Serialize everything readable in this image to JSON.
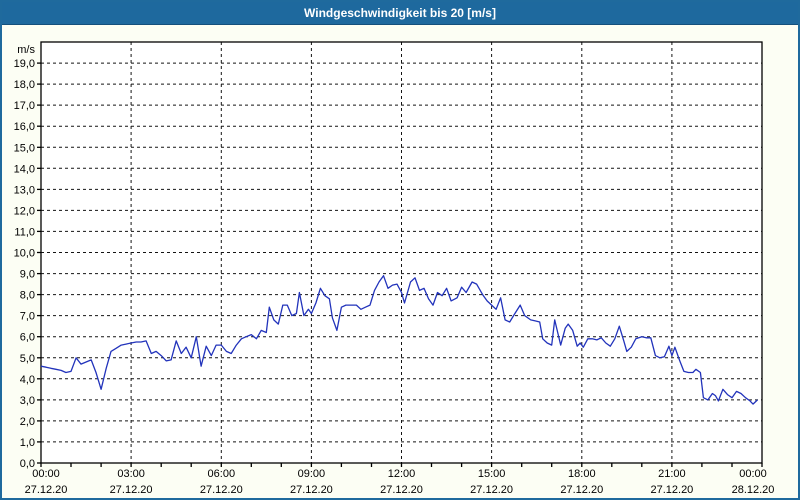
{
  "window": {
    "title": "Windgeschwindigkeit bis 20 [m/s]"
  },
  "colors": {
    "titlebar_bg": "#1e699e",
    "window_border": "#1f6a9d",
    "page_bg": "#fcfef4",
    "plot_bg": "#ffffff",
    "grid": "#141414",
    "line": "#2233bb"
  },
  "chart_data": {
    "type": "line",
    "title": "Windgeschwindigkeit bis 20 [m/s]",
    "ylabel_unit": "m/s",
    "ylim": [
      0,
      20
    ],
    "xlim_hours": [
      0,
      24
    ],
    "grid": {
      "h_step": 1,
      "v_step_hours": 3,
      "style": "dashed",
      "minor_x_tick_hours": 1
    },
    "legend_position": "none",
    "line_color": "#2233bb",
    "y_tick_labels": [
      "0,0",
      "1,0",
      "2,0",
      "3,0",
      "4,0",
      "5,0",
      "6,0",
      "7,0",
      "8,0",
      "9,0",
      "10,0",
      "11,0",
      "12,0",
      "13,0",
      "14,0",
      "15,0",
      "16,0",
      "17,0",
      "18,0",
      "19,0"
    ],
    "x_ticks": [
      {
        "hour": 0,
        "time": "00:00",
        "date": "27.12.20"
      },
      {
        "hour": 3,
        "time": "03:00",
        "date": "27.12.20"
      },
      {
        "hour": 6,
        "time": "06:00",
        "date": "27.12.20"
      },
      {
        "hour": 9,
        "time": "09:00",
        "date": "27.12.20"
      },
      {
        "hour": 12,
        "time": "12:00",
        "date": "27.12.20"
      },
      {
        "hour": 15,
        "time": "15:00",
        "date": "27.12.20"
      },
      {
        "hour": 18,
        "time": "18:00",
        "date": "27.12.20"
      },
      {
        "hour": 21,
        "time": "21:00",
        "date": "27.12.20"
      },
      {
        "hour": 24,
        "time": "00:00",
        "date": "28.12.20"
      }
    ],
    "series": [
      {
        "name": "Windgeschwindigkeit",
        "points": [
          [
            0,
            4.6
          ],
          [
            0.17,
            4.55
          ],
          [
            0.33,
            4.5
          ],
          [
            0.5,
            4.45
          ],
          [
            0.67,
            4.4
          ],
          [
            0.83,
            4.3
          ],
          [
            1,
            4.35
          ],
          [
            1.17,
            5.0
          ],
          [
            1.33,
            4.7
          ],
          [
            1.5,
            4.8
          ],
          [
            1.67,
            4.9
          ],
          [
            1.83,
            4.3
          ],
          [
            2,
            3.5
          ],
          [
            2.17,
            4.5
          ],
          [
            2.33,
            5.3
          ],
          [
            2.5,
            5.45
          ],
          [
            2.67,
            5.6
          ],
          [
            2.83,
            5.65
          ],
          [
            3,
            5.7
          ],
          [
            3.17,
            5.75
          ],
          [
            3.33,
            5.75
          ],
          [
            3.5,
            5.8
          ],
          [
            3.67,
            5.2
          ],
          [
            3.83,
            5.3
          ],
          [
            4,
            5.1
          ],
          [
            4.17,
            4.85
          ],
          [
            4.33,
            4.9
          ],
          [
            4.5,
            5.8
          ],
          [
            4.67,
            5.2
          ],
          [
            4.83,
            5.5
          ],
          [
            5,
            5.0
          ],
          [
            5.17,
            6.0
          ],
          [
            5.33,
            4.6
          ],
          [
            5.5,
            5.55
          ],
          [
            5.67,
            5.1
          ],
          [
            5.83,
            5.6
          ],
          [
            6,
            5.6
          ],
          [
            6.17,
            5.3
          ],
          [
            6.33,
            5.2
          ],
          [
            6.5,
            5.6
          ],
          [
            6.67,
            5.9
          ],
          [
            6.83,
            6.0
          ],
          [
            7,
            6.1
          ],
          [
            7.17,
            5.9
          ],
          [
            7.33,
            6.3
          ],
          [
            7.5,
            6.2
          ],
          [
            7.6,
            7.4
          ],
          [
            7.75,
            6.8
          ],
          [
            7.9,
            6.6
          ],
          [
            8.05,
            7.5
          ],
          [
            8.2,
            7.5
          ],
          [
            8.35,
            7.0
          ],
          [
            8.5,
            7.1
          ],
          [
            8.6,
            8.1
          ],
          [
            8.75,
            7.0
          ],
          [
            8.9,
            7.3
          ],
          [
            9,
            7.1
          ],
          [
            9.15,
            7.6
          ],
          [
            9.3,
            8.3
          ],
          [
            9.45,
            7.95
          ],
          [
            9.6,
            7.8
          ],
          [
            9.7,
            6.9
          ],
          [
            9.85,
            6.3
          ],
          [
            10,
            7.4
          ],
          [
            10.15,
            7.5
          ],
          [
            10.35,
            7.5
          ],
          [
            10.5,
            7.5
          ],
          [
            10.65,
            7.3
          ],
          [
            10.8,
            7.4
          ],
          [
            10.95,
            7.5
          ],
          [
            11.1,
            8.2
          ],
          [
            11.25,
            8.6
          ],
          [
            11.4,
            8.9
          ],
          [
            11.55,
            8.3
          ],
          [
            11.7,
            8.45
          ],
          [
            11.85,
            8.5
          ],
          [
            12,
            8.1
          ],
          [
            12.1,
            7.6
          ],
          [
            12.3,
            8.6
          ],
          [
            12.45,
            8.8
          ],
          [
            12.6,
            8.2
          ],
          [
            12.75,
            8.3
          ],
          [
            12.9,
            7.8
          ],
          [
            13.05,
            7.5
          ],
          [
            13.2,
            8.1
          ],
          [
            13.35,
            7.95
          ],
          [
            13.5,
            8.3
          ],
          [
            13.65,
            7.7
          ],
          [
            13.85,
            7.85
          ],
          [
            14,
            8.35
          ],
          [
            14.15,
            8.1
          ],
          [
            14.35,
            8.6
          ],
          [
            14.5,
            8.5
          ],
          [
            14.7,
            8.0
          ],
          [
            14.85,
            7.7
          ],
          [
            15,
            7.5
          ],
          [
            15.15,
            7.3
          ],
          [
            15.3,
            7.85
          ],
          [
            15.45,
            6.8
          ],
          [
            15.6,
            6.7
          ],
          [
            15.75,
            7.05
          ],
          [
            15.95,
            7.5
          ],
          [
            16.1,
            7.0
          ],
          [
            16.3,
            6.8
          ],
          [
            16.45,
            6.75
          ],
          [
            16.6,
            6.7
          ],
          [
            16.7,
            5.9
          ],
          [
            16.85,
            5.7
          ],
          [
            17,
            5.6
          ],
          [
            17.1,
            6.8
          ],
          [
            17.2,
            6.2
          ],
          [
            17.3,
            5.6
          ],
          [
            17.45,
            6.4
          ],
          [
            17.55,
            6.6
          ],
          [
            17.7,
            6.3
          ],
          [
            17.85,
            5.55
          ],
          [
            17.95,
            5.7
          ],
          [
            18.05,
            5.5
          ],
          [
            18.2,
            5.9
          ],
          [
            18.35,
            5.9
          ],
          [
            18.5,
            5.85
          ],
          [
            18.65,
            5.95
          ],
          [
            18.8,
            5.7
          ],
          [
            18.95,
            5.55
          ],
          [
            19.1,
            5.9
          ],
          [
            19.25,
            6.5
          ],
          [
            19.4,
            5.8
          ],
          [
            19.5,
            5.3
          ],
          [
            19.65,
            5.5
          ],
          [
            19.8,
            5.9
          ],
          [
            20,
            6.0
          ],
          [
            20.15,
            5.95
          ],
          [
            20.3,
            5.95
          ],
          [
            20.45,
            5.1
          ],
          [
            20.6,
            5.0
          ],
          [
            20.75,
            5.05
          ],
          [
            20.9,
            5.55
          ],
          [
            21,
            5.1
          ],
          [
            21.1,
            5.5
          ],
          [
            21.25,
            4.9
          ],
          [
            21.4,
            4.35
          ],
          [
            21.55,
            4.3
          ],
          [
            21.7,
            4.3
          ],
          [
            21.8,
            4.45
          ],
          [
            21.95,
            4.3
          ],
          [
            22.05,
            3.1
          ],
          [
            22.2,
            3.0
          ],
          [
            22.35,
            3.3
          ],
          [
            22.45,
            3.2
          ],
          [
            22.55,
            2.95
          ],
          [
            22.7,
            3.5
          ],
          [
            22.85,
            3.25
          ],
          [
            23,
            3.1
          ],
          [
            23.15,
            3.4
          ],
          [
            23.3,
            3.3
          ],
          [
            23.45,
            3.1
          ],
          [
            23.6,
            2.95
          ],
          [
            23.7,
            2.8
          ],
          [
            23.85,
            3.0
          ]
        ]
      }
    ]
  }
}
